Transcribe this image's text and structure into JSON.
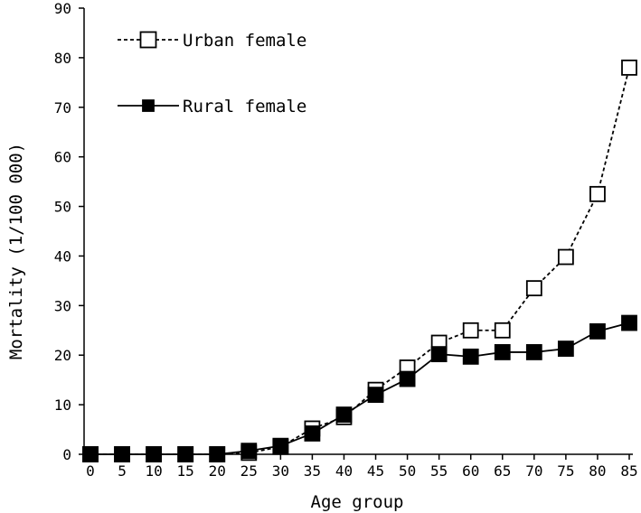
{
  "chart_data": {
    "type": "line",
    "title": "",
    "xlabel": "Age group",
    "ylabel": "Mortality (1/100 000)",
    "x": [
      0,
      5,
      10,
      15,
      20,
      25,
      30,
      35,
      40,
      45,
      50,
      55,
      60,
      65,
      70,
      75,
      80,
      85
    ],
    "x_tick_labels": [
      "0",
      "5",
      "10",
      "15",
      "20",
      "25",
      "30",
      "35",
      "40",
      "45",
      "50",
      "55",
      "60",
      "65",
      "70",
      "75",
      "80",
      "85"
    ],
    "y_ticks": [
      0,
      10,
      20,
      30,
      40,
      50,
      60,
      70,
      80,
      90
    ],
    "y_tick_labels": [
      "0",
      "10",
      "20",
      "30",
      "40",
      "50",
      "60",
      "70",
      "80",
      "90"
    ],
    "ylim": [
      0,
      90
    ],
    "grid": false,
    "legend_position": "top-left",
    "series": [
      {
        "name": "Urban female",
        "marker": "open-square",
        "line_style": "dashed",
        "color": "#000000",
        "values": [
          0,
          0,
          0,
          0,
          0,
          0.3,
          1.5,
          5.2,
          7.5,
          13,
          17.5,
          22.5,
          25,
          25,
          33.5,
          39.8,
          52.5,
          78
        ]
      },
      {
        "name": "Rural female",
        "marker": "filled-square",
        "line_style": "solid",
        "color": "#000000",
        "values": [
          0,
          0,
          0,
          0,
          0,
          0.7,
          1.7,
          4.2,
          8,
          12,
          15.2,
          20.2,
          19.7,
          20.6,
          20.6,
          21.3,
          24.8,
          26.5
        ]
      }
    ]
  }
}
